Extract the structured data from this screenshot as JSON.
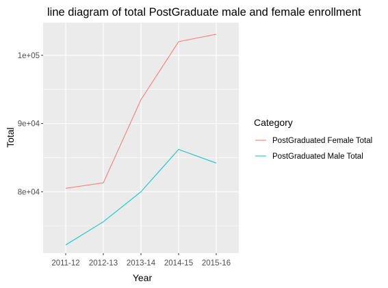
{
  "chart_data": {
    "type": "line",
    "title": "line diagram of total PostGraduate male and female enrollment",
    "xlabel": "Year",
    "ylabel": "Total",
    "categories": [
      "2011-12",
      "2012-13",
      "2013-14",
      "2014-15",
      "2015-16"
    ],
    "ylim": [
      71000,
      104800
    ],
    "y_ticks": [
      80000,
      90000,
      100000
    ],
    "y_tick_labels": [
      "8e+04",
      "9e+04",
      "1e+05"
    ],
    "grid": true,
    "legend": {
      "title": "Category",
      "placement": "right"
    },
    "series": [
      {
        "name": "PostGraduated Female Total",
        "color": "#F8766D",
        "values": [
          80500,
          81300,
          93500,
          102000,
          103100
        ]
      },
      {
        "name": "PostGraduated Male Total",
        "color": "#00BFC4",
        "values": [
          72200,
          75600,
          80000,
          86200,
          84200
        ]
      }
    ]
  }
}
